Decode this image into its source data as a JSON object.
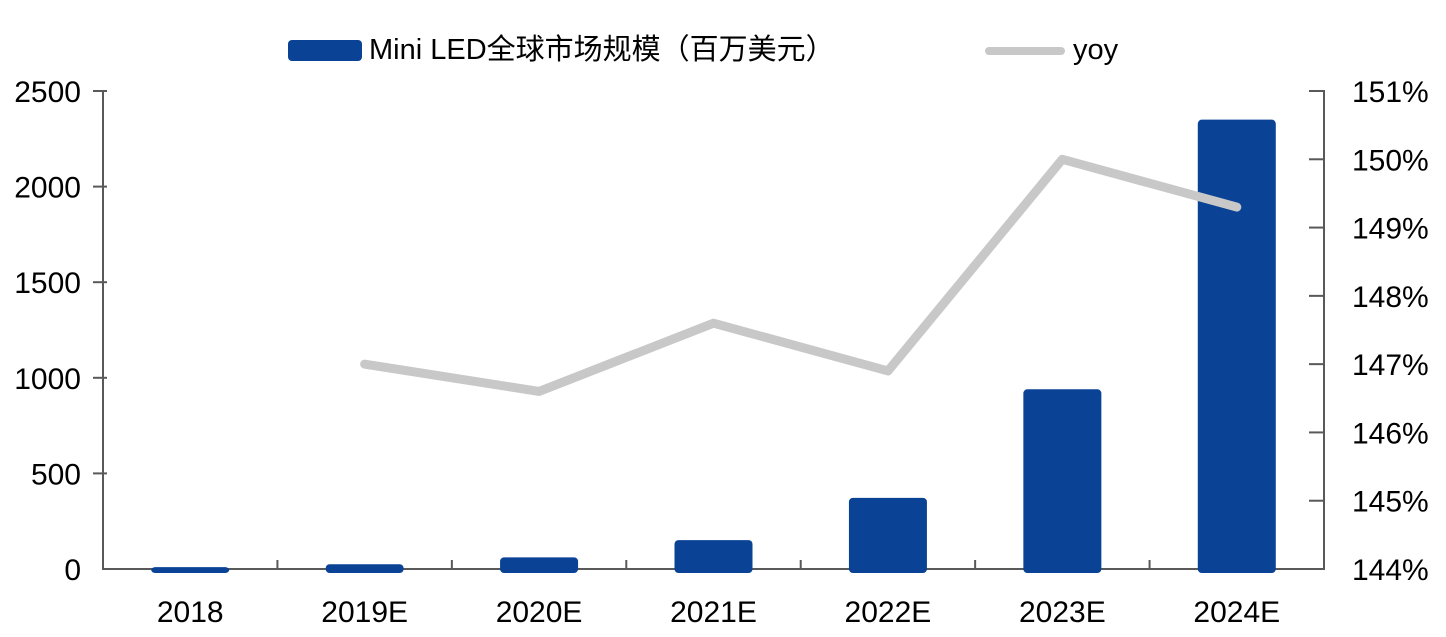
{
  "colors": {
    "bar": "#0a4296",
    "line": "#c8c8c8",
    "axis": "#595959",
    "text": "#000000",
    "background": "#ffffff"
  },
  "legend": {
    "bar_label": "Mini LED全球市场规模（百万美元）",
    "line_label": "yoy"
  },
  "chart_data": {
    "type": "bar",
    "subtype": "bar+line combo, dual axis",
    "title": "",
    "categories": [
      "2018",
      "2019E",
      "2020E",
      "2021E",
      "2022E",
      "2023E",
      "2024E"
    ],
    "series": [
      {
        "name": "Mini LED全球市场规模（百万美元）",
        "type": "bar",
        "axis": "left",
        "color": "#0a4296",
        "values": [
          10,
          25,
          61,
          151,
          372,
          940,
          2350
        ]
      },
      {
        "name": "yoy",
        "type": "line",
        "axis": "right",
        "color": "#c8c8c8",
        "values": [
          null,
          147.0,
          146.6,
          147.6,
          146.9,
          150.0,
          149.3
        ],
        "unit": "%"
      }
    ],
    "left_axis": {
      "min": 0,
      "max": 2500,
      "tick_values": [
        0,
        500,
        1000,
        1500,
        2000,
        2500
      ],
      "tick_labels": [
        "0",
        "500",
        "1000",
        "1500",
        "2000",
        "2500"
      ]
    },
    "right_axis": {
      "min": 144,
      "max": 151,
      "tick_values": [
        144,
        145,
        146,
        147,
        148,
        149,
        150,
        151
      ],
      "tick_labels": [
        "144%",
        "145%",
        "146%",
        "147%",
        "148%",
        "149%",
        "150%",
        "151%"
      ]
    },
    "grid": false,
    "legend_position": "top"
  }
}
